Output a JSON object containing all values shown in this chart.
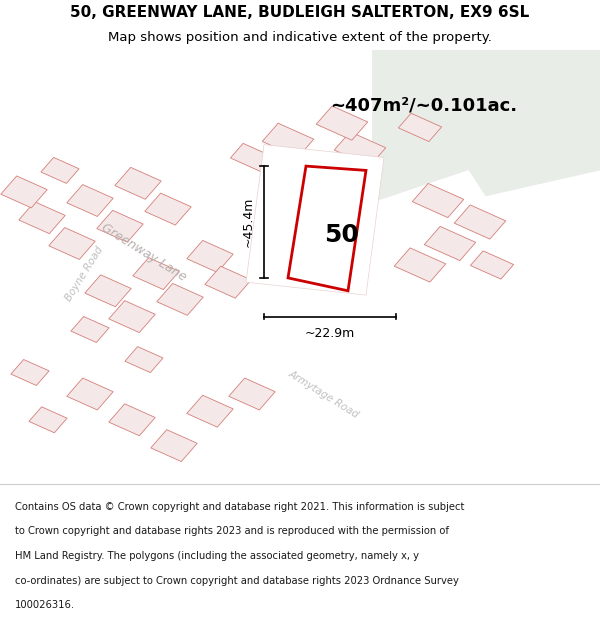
{
  "title_line1": "50, GREENWAY LANE, BUDLEIGH SALTERTON, EX9 6SL",
  "title_line2": "Map shows position and indicative extent of the property.",
  "area_label": "~407m²/~0.101ac.",
  "property_number": "50",
  "dim_height": "~45.4m",
  "dim_width": "~22.9m",
  "road_label1": "Greenway Lane",
  "road_label2": "Boyne Road",
  "road_label3": "Armytage Road",
  "footer_lines": [
    "Contains OS data © Crown copyright and database right 2021. This information is subject",
    "to Crown copyright and database rights 2023 and is reproduced with the permission of",
    "HM Land Registry. The polygons (including the associated geometry, namely x, y",
    "co-ordinates) are subject to Crown copyright and database rights 2023 Ordnance Survey",
    "100026316."
  ],
  "bg_color_main": "#f0eeee",
  "bg_color_green": "#e8ede8",
  "road_color": "#ffffff",
  "plot_outline_color": "#cc0000",
  "building_fill": "#f5e8e8",
  "building_edge": "#d4807a",
  "figsize": [
    6.0,
    6.25
  ],
  "dpi": 100
}
